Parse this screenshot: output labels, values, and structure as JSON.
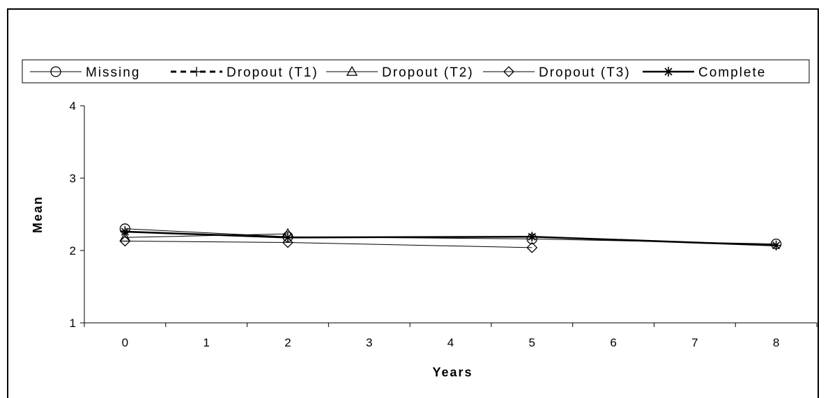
{
  "chart_data": {
    "type": "line",
    "xlabel": "Years",
    "ylabel": "Mean",
    "xlim": [
      -0.5,
      8.5
    ],
    "ylim": [
      1,
      4
    ],
    "x_ticks": [
      "0",
      "1",
      "2",
      "3",
      "4",
      "5",
      "6",
      "7",
      "8"
    ],
    "y_ticks": [
      "1",
      "2",
      "3",
      "4"
    ],
    "grid": false,
    "legend_position": "top",
    "series": [
      {
        "name": "Missing",
        "marker": "circle",
        "line_style": "solid-thin",
        "points": [
          {
            "x": 0,
            "y": 2.3
          },
          {
            "x": 2,
            "y": 2.19
          },
          {
            "x": 5,
            "y": 2.16
          },
          {
            "x": 8,
            "y": 2.09
          }
        ]
      },
      {
        "name": "Dropout (T1)",
        "marker": "plus",
        "line_style": "dashed-thick",
        "points": [
          {
            "x": 0,
            "y": 2.27
          }
        ]
      },
      {
        "name": "Dropout (T2)",
        "marker": "triangle",
        "line_style": "solid-thin",
        "points": [
          {
            "x": 0,
            "y": 2.18
          },
          {
            "x": 2,
            "y": 2.23
          }
        ]
      },
      {
        "name": "Dropout (T3)",
        "marker": "diamond",
        "line_style": "solid-thin",
        "points": [
          {
            "x": 0,
            "y": 2.13
          },
          {
            "x": 2,
            "y": 2.11
          },
          {
            "x": 5,
            "y": 2.04
          }
        ]
      },
      {
        "name": "Complete",
        "marker": "asterisk",
        "line_style": "solid-thick",
        "points": [
          {
            "x": 0,
            "y": 2.26
          },
          {
            "x": 2,
            "y": 2.18
          },
          {
            "x": 5,
            "y": 2.19
          },
          {
            "x": 8,
            "y": 2.07
          }
        ]
      }
    ]
  }
}
